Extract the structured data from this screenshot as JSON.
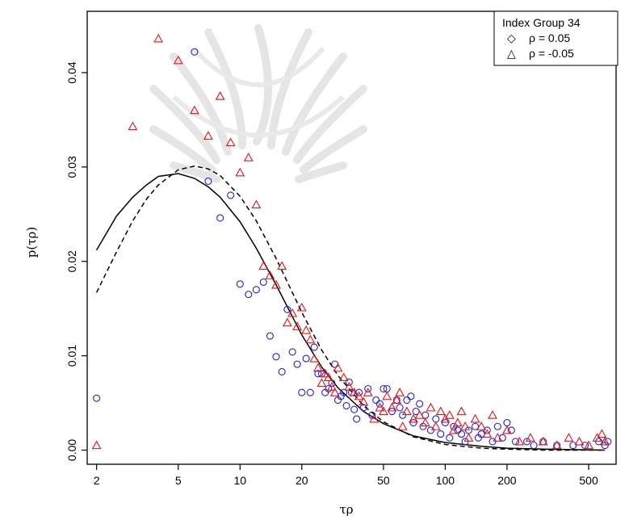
{
  "chart_data": {
    "type": "scatter",
    "title": "",
    "xlabel": "τρ",
    "ylabel": "p(τρ)",
    "x_scale": "log",
    "xlim": [
      1.8,
      680
    ],
    "ylim": [
      -0.0015,
      0.0465
    ],
    "x_ticks": [
      2,
      5,
      10,
      20,
      50,
      100,
      200,
      500
    ],
    "y_ticks": [
      0.0,
      0.01,
      0.02,
      0.03,
      0.04
    ],
    "y_tick_labels": [
      "0.00",
      "0.01",
      "0.02",
      "0.03",
      "0.04"
    ],
    "grid": false,
    "legend": {
      "position": "top-right",
      "title": "Index Group 34",
      "entries": [
        {
          "marker": "◇",
          "label": "ρ = 0.05"
        },
        {
          "marker": "△",
          "label": "ρ = -0.05"
        }
      ]
    },
    "series": [
      {
        "marker": "circle",
        "color": "#1f1fe0",
        "points": [
          [
            2,
            0.0055
          ],
          [
            6,
            0.0422
          ],
          [
            7,
            0.0285
          ],
          [
            8,
            0.0246
          ],
          [
            9,
            0.027
          ],
          [
            10,
            0.0176
          ],
          [
            11,
            0.0165
          ],
          [
            12,
            0.017
          ],
          [
            13,
            0.0178
          ],
          [
            14,
            0.0121
          ],
          [
            15,
            0.0099
          ],
          [
            16,
            0.0083
          ],
          [
            17,
            0.0149
          ],
          [
            18,
            0.0104
          ],
          [
            19,
            0.0091
          ],
          [
            20,
            0.0061
          ],
          [
            21,
            0.0097
          ],
          [
            22,
            0.0061
          ],
          [
            23,
            0.0109
          ],
          [
            24,
            0.0081
          ],
          [
            25,
            0.0081
          ],
          [
            26,
            0.0061
          ],
          [
            27,
            0.0065
          ],
          [
            28,
            0.0071
          ],
          [
            29,
            0.0091
          ],
          [
            30,
            0.0053
          ],
          [
            31,
            0.0057
          ],
          [
            32,
            0.0061
          ],
          [
            33,
            0.0047
          ],
          [
            34,
            0.0072
          ],
          [
            35,
            0.0061
          ],
          [
            36,
            0.0043
          ],
          [
            37,
            0.0033
          ],
          [
            38,
            0.0061
          ],
          [
            40,
            0.0045
          ],
          [
            42,
            0.0065
          ],
          [
            44,
            0.0037
          ],
          [
            46,
            0.0053
          ],
          [
            48,
            0.0049
          ],
          [
            50,
            0.0065
          ],
          [
            52,
            0.0065
          ],
          [
            55,
            0.0041
          ],
          [
            58,
            0.0053
          ],
          [
            60,
            0.0045
          ],
          [
            62,
            0.0037
          ],
          [
            65,
            0.0053
          ],
          [
            68,
            0.0057
          ],
          [
            70,
            0.0029
          ],
          [
            72,
            0.0041
          ],
          [
            75,
            0.0049
          ],
          [
            78,
            0.0025
          ],
          [
            80,
            0.0037
          ],
          [
            85,
            0.0021
          ],
          [
            90,
            0.0033
          ],
          [
            95,
            0.0017
          ],
          [
            100,
            0.0029
          ],
          [
            105,
            0.0013
          ],
          [
            110,
            0.0025
          ],
          [
            115,
            0.0021
          ],
          [
            120,
            0.0017
          ],
          [
            125,
            0.0009
          ],
          [
            130,
            0.0021
          ],
          [
            140,
            0.0025
          ],
          [
            145,
            0.0013
          ],
          [
            150,
            0.0017
          ],
          [
            160,
            0.0021
          ],
          [
            170,
            0.0009
          ],
          [
            180,
            0.0025
          ],
          [
            190,
            0.0013
          ],
          [
            200,
            0.0029
          ],
          [
            210,
            0.0021
          ],
          [
            220,
            0.0009
          ],
          [
            250,
            0.0009
          ],
          [
            270,
            0.0005
          ],
          [
            300,
            0.0009
          ],
          [
            350,
            0.0005
          ],
          [
            420,
            0.0005
          ],
          [
            480,
            0.0005
          ],
          [
            560,
            0.0009
          ],
          [
            600,
            0.0005
          ],
          [
            620,
            0.0009
          ]
        ]
      },
      {
        "marker": "triangle",
        "color": "#ee1111",
        "points": [
          [
            2,
            0.0005
          ],
          [
            3,
            0.0343
          ],
          [
            4,
            0.0436
          ],
          [
            5,
            0.0413
          ],
          [
            6,
            0.036
          ],
          [
            7,
            0.0333
          ],
          [
            8,
            0.0375
          ],
          [
            9,
            0.0326
          ],
          [
            10,
            0.0294
          ],
          [
            11,
            0.031
          ],
          [
            12,
            0.026
          ],
          [
            13,
            0.0195
          ],
          [
            14,
            0.0185
          ],
          [
            15,
            0.0175
          ],
          [
            16,
            0.0195
          ],
          [
            17,
            0.0135
          ],
          [
            18,
            0.0145
          ],
          [
            19,
            0.0131
          ],
          [
            20,
            0.0151
          ],
          [
            21,
            0.0127
          ],
          [
            22,
            0.0117
          ],
          [
            23,
            0.0097
          ],
          [
            24,
            0.0087
          ],
          [
            25,
            0.0071
          ],
          [
            26,
            0.0081
          ],
          [
            27,
            0.0077
          ],
          [
            28,
            0.0067
          ],
          [
            29,
            0.0061
          ],
          [
            30,
            0.0087
          ],
          [
            32,
            0.0077
          ],
          [
            34,
            0.0067
          ],
          [
            36,
            0.0061
          ],
          [
            38,
            0.0057
          ],
          [
            40,
            0.0051
          ],
          [
            42,
            0.0061
          ],
          [
            45,
            0.0033
          ],
          [
            48,
            0.0045
          ],
          [
            50,
            0.0041
          ],
          [
            52,
            0.0057
          ],
          [
            55,
            0.0045
          ],
          [
            58,
            0.0053
          ],
          [
            60,
            0.0061
          ],
          [
            62,
            0.0025
          ],
          [
            65,
            0.0041
          ],
          [
            70,
            0.0033
          ],
          [
            75,
            0.0037
          ],
          [
            80,
            0.0029
          ],
          [
            85,
            0.0045
          ],
          [
            90,
            0.0025
          ],
          [
            95,
            0.0041
          ],
          [
            100,
            0.0033
          ],
          [
            105,
            0.0037
          ],
          [
            110,
            0.0021
          ],
          [
            115,
            0.0029
          ],
          [
            120,
            0.0041
          ],
          [
            125,
            0.0025
          ],
          [
            130,
            0.0013
          ],
          [
            140,
            0.0033
          ],
          [
            150,
            0.0025
          ],
          [
            160,
            0.0017
          ],
          [
            170,
            0.0037
          ],
          [
            180,
            0.0013
          ],
          [
            200,
            0.0021
          ],
          [
            230,
            0.0009
          ],
          [
            260,
            0.0013
          ],
          [
            300,
            0.0009
          ],
          [
            350,
            0.0005
          ],
          [
            400,
            0.0013
          ],
          [
            450,
            0.0009
          ],
          [
            500,
            0.0005
          ],
          [
            550,
            0.0013
          ],
          [
            580,
            0.0017
          ],
          [
            600,
            0.0009
          ]
        ]
      },
      {
        "line": "solid",
        "color": "#000000",
        "points": [
          [
            2,
            0.0212
          ],
          [
            2.5,
            0.0248
          ],
          [
            3,
            0.0268
          ],
          [
            3.5,
            0.0281
          ],
          [
            4,
            0.029
          ],
          [
            5,
            0.0293
          ],
          [
            6,
            0.0288
          ],
          [
            7,
            0.0279
          ],
          [
            8,
            0.0268
          ],
          [
            10,
            0.0242
          ],
          [
            12,
            0.0214
          ],
          [
            15,
            0.0175
          ],
          [
            20,
            0.0122
          ],
          [
            25,
            0.0088
          ],
          [
            30,
            0.0066
          ],
          [
            40,
            0.0041
          ],
          [
            50,
            0.0028
          ],
          [
            70,
            0.0015
          ],
          [
            100,
            0.0008
          ],
          [
            150,
            0.0004
          ],
          [
            200,
            0.0002
          ],
          [
            300,
            0.0001
          ],
          [
            600,
            0.0
          ]
        ]
      },
      {
        "line": "dashed",
        "color": "#000000",
        "points": [
          [
            2,
            0.0167
          ],
          [
            2.5,
            0.021
          ],
          [
            3,
            0.0243
          ],
          [
            3.5,
            0.0266
          ],
          [
            4,
            0.0281
          ],
          [
            5,
            0.0297
          ],
          [
            6,
            0.0301
          ],
          [
            7,
            0.0298
          ],
          [
            8,
            0.0291
          ],
          [
            10,
            0.0269
          ],
          [
            12,
            0.0243
          ],
          [
            15,
            0.0203
          ],
          [
            20,
            0.0146
          ],
          [
            25,
            0.0106
          ],
          [
            30,
            0.0079
          ],
          [
            40,
            0.0047
          ],
          [
            50,
            0.003
          ],
          [
            70,
            0.0014
          ],
          [
            100,
            0.0006
          ],
          [
            150,
            0.0002
          ],
          [
            200,
            0.0001
          ],
          [
            300,
            0.0
          ],
          [
            600,
            0.0
          ]
        ]
      }
    ]
  }
}
